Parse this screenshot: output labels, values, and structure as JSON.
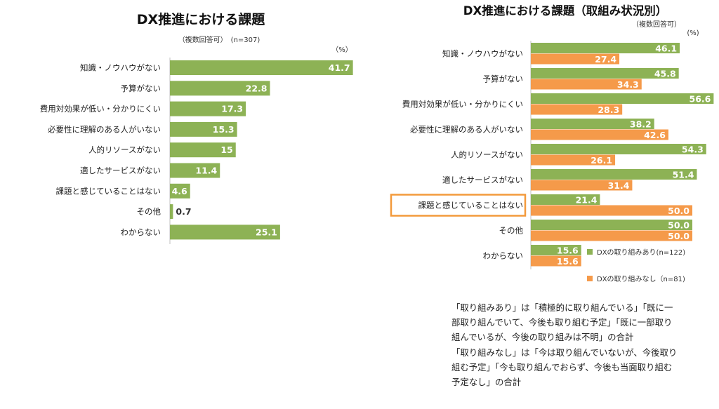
{
  "colors": {
    "green": "#8DB255",
    "orange": "#F59A4A",
    "highlight_border": "#F39A3C",
    "axis": "#BFBFBF"
  },
  "chart_data": [
    {
      "type": "bar",
      "orientation": "horizontal",
      "title": "DX推進における課題",
      "subtitle": "（複数回答可）　(n=307)",
      "unit_label": "（%）",
      "categories": [
        "知識・ノウハウがない",
        "予算がない",
        "費用対効果が低い・分かりにくい",
        "必要性に理解のある人がいない",
        "人的リソースがない",
        "適したサービスがない",
        "課題と感じていることはない",
        "その他",
        "わからない"
      ],
      "values": [
        41.7,
        22.8,
        17.3,
        15.3,
        15,
        11.4,
        4.6,
        0.7,
        25.1
      ],
      "value_labels": [
        "41.7",
        "22.8",
        "17.3",
        "15.3",
        "15",
        "11.4",
        "4.6",
        "0.7",
        "25.1"
      ],
      "xlim": [
        0,
        100
      ],
      "grid": false
    },
    {
      "type": "bar",
      "orientation": "horizontal",
      "title": "DX推進における課題（取組み状況別）",
      "subtitle": "（複数回答可）",
      "unit_label": "(%)",
      "categories": [
        "知識・ノウハウがない",
        "予算がない",
        "費用対効果が低い・分かりにくい",
        "必要性に理解のある人がいない",
        "人的リソースがない",
        "適したサービスがない",
        "課題と感じていることはない",
        "その他",
        "わからない"
      ],
      "highlighted_category": "課題と感じていることはない",
      "series": [
        {
          "name": "DXの取り組みあり(n=122)",
          "values": [
            46.1,
            45.8,
            56.6,
            38.2,
            54.3,
            51.4,
            21.4,
            50.0,
            15.6
          ],
          "value_labels": [
            "46.1",
            "45.8",
            "56.6",
            "38.2",
            "54.3",
            "51.4",
            "21.4",
            "50.0",
            "15.6"
          ]
        },
        {
          "name": "DXの取り組みなし（n=81)",
          "values": [
            27.4,
            34.3,
            28.3,
            42.6,
            26.1,
            31.4,
            50.0,
            50.0,
            15.6
          ],
          "value_labels": [
            "27.4",
            "34.3",
            "28.3",
            "42.6",
            "26.1",
            "31.4",
            "50.0",
            "50.0",
            "15.6"
          ]
        }
      ],
      "legend_position": "bottom-right",
      "xlim": [
        0,
        100
      ],
      "grid": false
    }
  ],
  "note_lines": [
    "「取り組みあり」は「積極的に取り組んでいる」「既に一",
    "部取り組んでいて、今後も取り組む予定」「既に一部取り",
    "組んでいるが、今後の取り組みは不明」の合計",
    "「取り組みなし」は「今は取り組んでいないが、今後取り",
    "組む予定」「今も取り組んでおらず、今後も当面取り組む",
    "予定なし」の合計"
  ]
}
